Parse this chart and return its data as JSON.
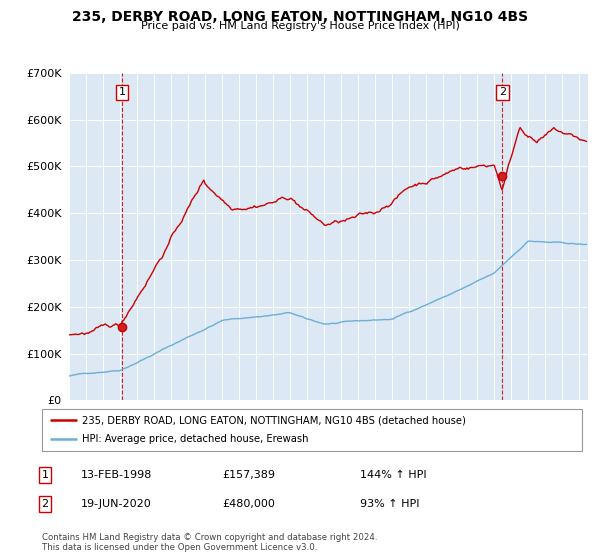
{
  "title": "235, DERBY ROAD, LONG EATON, NOTTINGHAM, NG10 4BS",
  "subtitle": "Price paid vs. HM Land Registry's House Price Index (HPI)",
  "legend_line1": "235, DERBY ROAD, LONG EATON, NOTTINGHAM, NG10 4BS (detached house)",
  "legend_line2": "HPI: Average price, detached house, Erewash",
  "annotation1_date": "13-FEB-1998",
  "annotation1_price": "£157,389",
  "annotation1_hpi": "144% ↑ HPI",
  "annotation2_date": "19-JUN-2020",
  "annotation2_price": "£480,000",
  "annotation2_hpi": "93% ↑ HPI",
  "footnote1": "Contains HM Land Registry data © Crown copyright and database right 2024.",
  "footnote2": "This data is licensed under the Open Government Licence v3.0.",
  "red_line_color": "#cc0000",
  "blue_line_color": "#6baed6",
  "dashed_line_color": "#cc0000",
  "plot_bg_color": "#dce9f5",
  "ylim": [
    0,
    700000
  ],
  "xlim_start": 1995.0,
  "xlim_end": 2025.5,
  "sale1_x": 1998.12,
  "sale1_y": 157389,
  "sale2_x": 2020.46,
  "sale2_y": 480000
}
